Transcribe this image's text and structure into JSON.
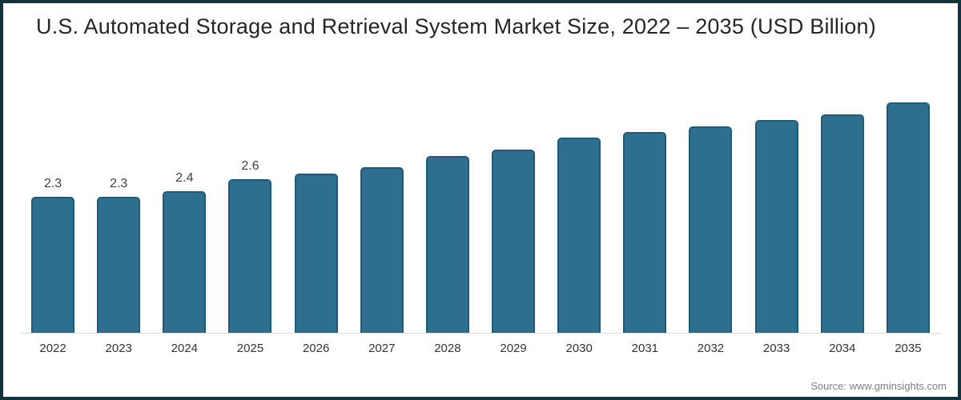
{
  "title": "U.S. Automated Storage and Retrieval System Market Size, 2022 – 2035 (USD Billion)",
  "source_note": "Source: www.gminsights.com",
  "colors": {
    "bar_fill": "#2e6f8f",
    "bar_border": "#1f5b78",
    "frame_border": "#14333f",
    "axis_line": "#d9d9d9",
    "title_text": "#262626",
    "value_label_text": "#404040",
    "tick_label_text": "#333333",
    "source_text": "#808080"
  },
  "chart_data": {
    "type": "bar",
    "title": "U.S. Automated Storage and Retrieval System Market Size, 2022 – 2035 (USD Billion)",
    "categories": [
      "2022",
      "2023",
      "2024",
      "2025",
      "2026",
      "2027",
      "2028",
      "2029",
      "2030",
      "2031",
      "2032",
      "2033",
      "2034",
      "2035"
    ],
    "values": [
      2.3,
      2.3,
      2.4,
      2.6,
      2.7,
      2.8,
      3.0,
      3.1,
      3.3,
      3.4,
      3.5,
      3.6,
      3.7,
      3.9
    ],
    "data_labels": [
      "2.3",
      "2.3",
      "2.4",
      "2.6",
      "",
      "",
      "",
      "",
      "",
      "",
      "",
      "",
      "",
      ""
    ],
    "xlabel": "",
    "ylabel": "",
    "ylim": [
      0,
      4.2
    ],
    "grid": false,
    "legend": false,
    "unit": "USD Billion"
  }
}
